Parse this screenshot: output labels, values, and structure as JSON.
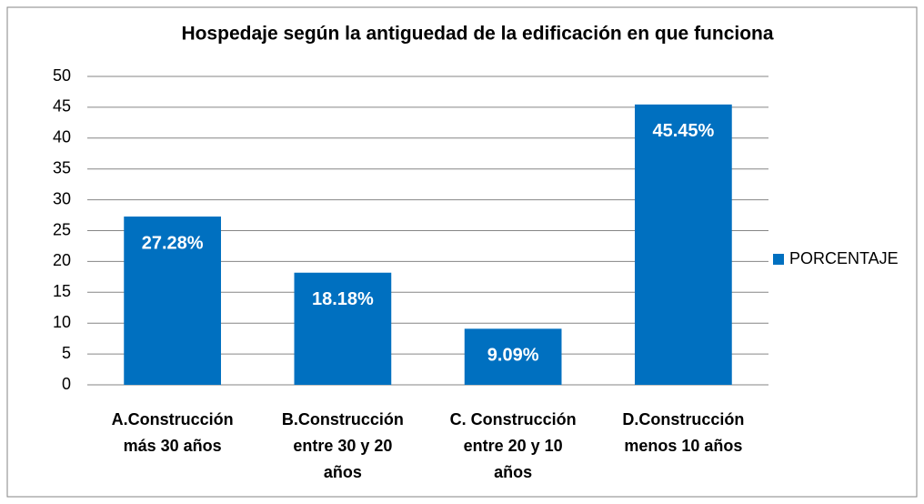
{
  "chart_data": {
    "type": "bar",
    "title": "Hospedaje según la antiguedad de la edificación en que funciona",
    "categories": [
      [
        "A.Construcción",
        "más 30 años"
      ],
      [
        "B.Construcción",
        "entre 30 y 20",
        "años"
      ],
      [
        "C. Construcción",
        "entre 20 y 10",
        "años"
      ],
      [
        "D.Construcción",
        "menos 10 años"
      ]
    ],
    "series": [
      {
        "name": "PORCENTAJE",
        "color": "#0070c0",
        "values": [
          27.28,
          18.18,
          9.09,
          45.45
        ],
        "value_labels": [
          "27.28%",
          "18.18%",
          "9.09%",
          "45.45%"
        ]
      }
    ],
    "ylim": [
      0,
      50
    ],
    "yticks": [
      0,
      5,
      10,
      15,
      20,
      25,
      30,
      35,
      40,
      45,
      50
    ],
    "grid": true,
    "legend": "right"
  }
}
